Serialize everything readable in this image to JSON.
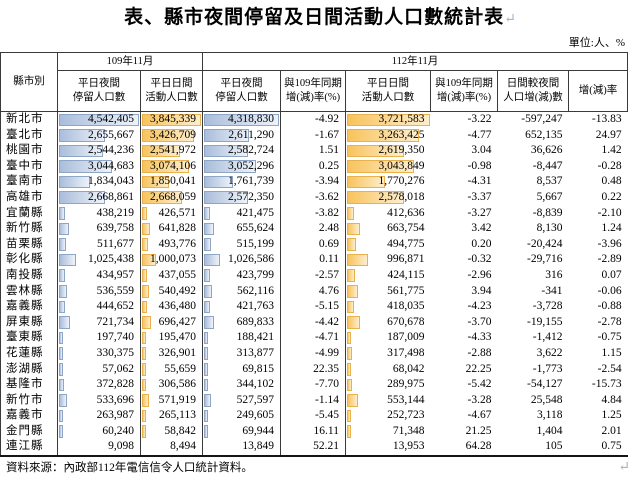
{
  "title": "表、縣市夜間停留及日間活動人口數統計表",
  "return_mark": "↵",
  "unit_label": "單位:人、%",
  "header": {
    "county": "縣市別",
    "period_109": "109年11月",
    "period_112": "112年11月",
    "night_109": "平日夜間\n停留人口數",
    "day_109": "平日日間\n活動人口數",
    "night_112": "平日夜間\n停留人口數",
    "yoy_night": "與109年同期\n增(減)率(%)",
    "day_112": "平日日間\n活動人口數",
    "yoy_day": "與109年同期\n增(減)率(%)",
    "day_minus_night": "日間較夜間\n人口增(減)數",
    "change_rate": "增(減)率"
  },
  "rows": [
    {
      "name": "新北市",
      "values": [
        "4,542,405",
        "3,845,339",
        "4,318,830",
        "-4.92",
        "3,721,583",
        "-3.22",
        "-597,247",
        "-13.83"
      ]
    },
    {
      "name": "臺北市",
      "values": [
        "2,655,667",
        "3,426,709",
        "2,611,290",
        "-1.67",
        "3,263,425",
        "-4.77",
        "652,135",
        "24.97"
      ]
    },
    {
      "name": "桃園市",
      "values": [
        "2,544,236",
        "2,541,972",
        "2,582,724",
        "1.51",
        "2,619,350",
        "3.04",
        "36,626",
        "1.42"
      ]
    },
    {
      "name": "臺中市",
      "values": [
        "3,044,683",
        "3,074,106",
        "3,052,296",
        "0.25",
        "3,043,849",
        "-0.98",
        "-8,447",
        "-0.28"
      ]
    },
    {
      "name": "臺南市",
      "values": [
        "1,834,043",
        "1,850,041",
        "1,761,739",
        "-3.94",
        "1,770,276",
        "-4.31",
        "8,537",
        "0.48"
      ]
    },
    {
      "name": "高雄市",
      "values": [
        "2,668,861",
        "2,668,059",
        "2,572,350",
        "-3.62",
        "2,578,018",
        "-3.37",
        "5,667",
        "0.22"
      ]
    },
    {
      "name": "宜蘭縣",
      "values": [
        "438,219",
        "426,571",
        "421,475",
        "-3.82",
        "412,636",
        "-3.27",
        "-8,839",
        "-2.10"
      ]
    },
    {
      "name": "新竹縣",
      "values": [
        "639,758",
        "641,828",
        "655,624",
        "2.48",
        "663,754",
        "3.42",
        "8,130",
        "1.24"
      ]
    },
    {
      "name": "苗栗縣",
      "values": [
        "511,677",
        "493,776",
        "515,199",
        "0.69",
        "494,775",
        "0.20",
        "-20,424",
        "-3.96"
      ]
    },
    {
      "name": "彰化縣",
      "values": [
        "1,025,438",
        "1,000,073",
        "1,026,586",
        "0.11",
        "996,871",
        "-0.32",
        "-29,716",
        "-2.89"
      ]
    },
    {
      "name": "南投縣",
      "values": [
        "434,957",
        "437,055",
        "423,799",
        "-2.57",
        "424,115",
        "-2.96",
        "316",
        "0.07"
      ]
    },
    {
      "name": "雲林縣",
      "values": [
        "536,559",
        "540,492",
        "562,116",
        "4.76",
        "561,775",
        "3.94",
        "-341",
        "-0.06"
      ]
    },
    {
      "name": "嘉義縣",
      "values": [
        "444,652",
        "436,480",
        "421,763",
        "-5.15",
        "418,035",
        "-4.23",
        "-3,728",
        "-0.88"
      ]
    },
    {
      "name": "屏東縣",
      "values": [
        "721,734",
        "696,427",
        "689,833",
        "-4.42",
        "670,678",
        "-3.70",
        "-19,155",
        "-2.78"
      ]
    },
    {
      "name": "臺東縣",
      "values": [
        "197,740",
        "195,470",
        "188,421",
        "-4.71",
        "187,009",
        "-4.33",
        "-1,412",
        "-0.75"
      ]
    },
    {
      "name": "花蓮縣",
      "values": [
        "330,375",
        "326,901",
        "313,877",
        "-4.99",
        "317,498",
        "-2.88",
        "3,622",
        "1.15"
      ]
    },
    {
      "name": "澎湖縣",
      "values": [
        "57,062",
        "55,659",
        "69,815",
        "22.35",
        "68,042",
        "22.25",
        "-1,773",
        "-2.54"
      ]
    },
    {
      "name": "基隆市",
      "values": [
        "372,828",
        "306,586",
        "344,102",
        "-7.70",
        "289,975",
        "-5.42",
        "-54,127",
        "-15.73"
      ]
    },
    {
      "name": "新竹市",
      "values": [
        "533,696",
        "571,919",
        "527,597",
        "-1.14",
        "553,144",
        "-3.28",
        "25,548",
        "4.84"
      ]
    },
    {
      "name": "嘉義市",
      "values": [
        "263,987",
        "265,113",
        "249,605",
        "-5.45",
        "252,723",
        "-4.67",
        "3,118",
        "1.25"
      ]
    },
    {
      "name": "金門縣",
      "values": [
        "60,240",
        "58,842",
        "69,944",
        "16.11",
        "71,348",
        "21.25",
        "1,404",
        "2.01"
      ]
    },
    {
      "name": "連江縣",
      "values": [
        "9,098",
        "8,494",
        "13,849",
        "52.21",
        "13,953",
        "64.28",
        "105",
        "0.75"
      ]
    }
  ],
  "source": "資料來源：內政部112年電信信令人口統計資料。",
  "colors": {
    "bar_blue_start": "#a9bddb",
    "bar_blue_end": "#eef3fa",
    "bar_blue_border": "#8fa5c6",
    "bar_orange_start": "#f8c35c",
    "bar_orange_end": "#fdeecd",
    "bar_orange_border": "#e9b14e",
    "return_mark_color": "#9db6cc",
    "text_color": "#000000"
  }
}
